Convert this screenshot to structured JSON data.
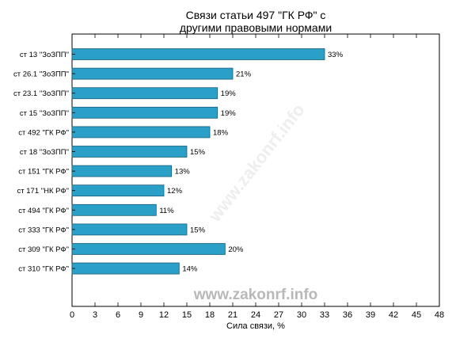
{
  "chart_data": {
    "type": "bar",
    "orientation": "horizontal",
    "title_lines": [
      "Связи статьи 497 \"ГК РФ\" с",
      "другими правовыми нормами"
    ],
    "xlabel": "Сила связи, %",
    "ylabel": "",
    "xlim": [
      0,
      48
    ],
    "x_ticks": [
      0,
      3,
      6,
      9,
      12,
      15,
      18,
      21,
      24,
      27,
      30,
      33,
      36,
      39,
      42,
      45,
      48
    ],
    "categories": [
      "ст 13 \"ЗоЗПП\"",
      "ст 26.1 \"ЗоЗПП\"",
      "ст 23.1 \"ЗоЗПП\"",
      "ст 15 \"ЗоЗПП\"",
      "ст 492 \"ГК РФ\"",
      "ст 18 \"ЗоЗПП\"",
      "ст 151 \"ГК РФ\"",
      "ст 171 \"НК РФ\"",
      "ст 494 \"ГК РФ\"",
      "ст 333 \"ГК РФ\"",
      "ст 309 \"ГК РФ\"",
      "ст 310 \"ГК РФ\""
    ],
    "values": [
      33,
      21,
      19,
      19,
      18,
      15,
      13,
      12,
      11,
      15,
      20,
      14
    ],
    "value_labels": [
      "33%",
      "21%",
      "19%",
      "19%",
      "18%",
      "15%",
      "13%",
      "12%",
      "11%",
      "15%",
      "20%",
      "14%"
    ],
    "bar_color": "#2a9fc8",
    "bar_edge_color": "#1a5f7a",
    "grid": false,
    "legend": "none"
  },
  "watermark": {
    "main": "www.zakonrf.info",
    "diagonal": "www.zakonrf.info"
  }
}
